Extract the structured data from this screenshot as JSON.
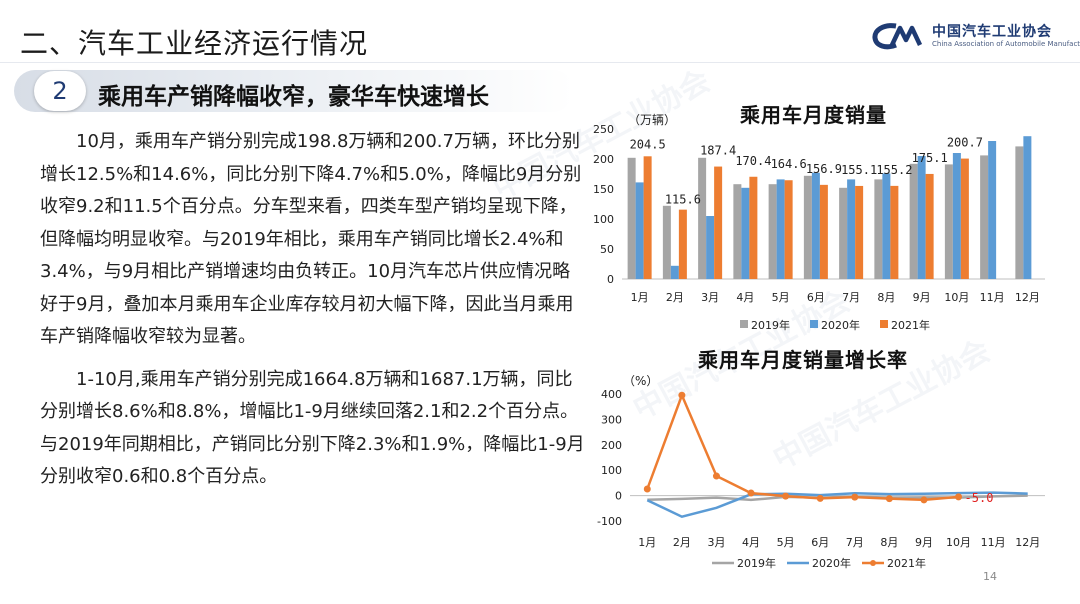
{
  "header": {
    "section_title": "二、汽车工业经济运行情况",
    "logo_cn": "中国汽车工业协会",
    "logo_en": "China Association of Automobile Manufacturers"
  },
  "subsection": {
    "number": "2",
    "title": "乘用车产销降幅收窄，豪华车快速增长"
  },
  "paragraphs": [
    "10月，乘用车产销分别完成198.8万辆和200.7万辆，环比分别增长12.5%和14.6%，同比分别下降4.7%和5.0%，降幅比9月分别收窄9.2和11.5个百分点。分车型来看，四类车型产销均呈现下降，但降幅均明显收窄。与2019年相比，乘用车产销同比增长2.4%和3.4%，与9月相比产销增速均由负转正。10月汽车芯片供应情况略好于9月，叠加本月乘用车企业库存较月初大幅下降，因此当月乘用车产销降幅收窄较为显著。",
    "1-10月,乘用车产销分别完成1664.8万辆和1687.1万辆，同比分别增长8.6%和8.8%，增幅比1-9月继续回落2.1和2.2个百分点。与2019年同期相比，产销同比分别下降2.3%和1.9%，降幅比1-9月分别收窄0.6和0.8个百分点。"
  ],
  "page_number": "14",
  "watermark_text": "中国汽车工业协会",
  "chart_data": [
    {
      "type": "bar",
      "title": "乘用车月度销量",
      "unit_label": "（万辆）",
      "categories": [
        "1月",
        "2月",
        "3月",
        "4月",
        "5月",
        "6月",
        "7月",
        "8月",
        "9月",
        "10月",
        "11月",
        "12月"
      ],
      "ylim": [
        0,
        250
      ],
      "yticks": [
        0,
        50,
        100,
        150,
        200,
        250
      ],
      "series": [
        {
          "name": "2019年",
          "color": "#a5a5a5",
          "values": [
            202,
            122,
            202,
            158,
            158,
            172,
            152,
            166,
            192,
            191,
            206,
            221
          ]
        },
        {
          "name": "2020年",
          "color": "#5b9bd5",
          "values": [
            161,
            22,
            105,
            152,
            166,
            177,
            166,
            176,
            205,
            210,
            230,
            238
          ]
        },
        {
          "name": "2021年",
          "color": "#ed7d31",
          "values": [
            204.5,
            115.6,
            187.4,
            170.4,
            164.6,
            156.9,
            155.1,
            155.2,
            175.1,
            200.7,
            null,
            null
          ]
        }
      ],
      "data_labels": [
        "204.5",
        "115.6",
        "187.4",
        "170.4",
        "164.6",
        "156.9",
        "155.1",
        "155.2",
        "175.1",
        "200.7"
      ],
      "legend_position": "bottom"
    },
    {
      "type": "line",
      "title": "乘用车月度销量增长率",
      "unit_label": "（%）",
      "categories": [
        "1月",
        "2月",
        "3月",
        "4月",
        "5月",
        "6月",
        "7月",
        "8月",
        "9月",
        "10月",
        "11月",
        "12月"
      ],
      "ylim": [
        -100,
        400
      ],
      "yticks": [
        -100,
        0,
        100,
        200,
        300,
        400
      ],
      "series": [
        {
          "name": "2019年",
          "color": "#a5a5a5",
          "values": [
            -16,
            -13,
            -8,
            -17,
            -5,
            -8,
            -4,
            -8,
            -7,
            -8,
            -3,
            0
          ]
        },
        {
          "name": "2020年",
          "color": "#5b9bd5",
          "values": [
            -18,
            -83,
            -48,
            5,
            7,
            2,
            9,
            6,
            7,
            10,
            12,
            8
          ]
        },
        {
          "name": "2021年",
          "color": "#ed7d31",
          "values": [
            26,
            395,
            77,
            10,
            -2,
            -11,
            -6,
            -12,
            -17,
            -5.0,
            null,
            null
          ]
        }
      ],
      "data_labels": [
        "-5.0"
      ],
      "legend_position": "bottom"
    }
  ]
}
